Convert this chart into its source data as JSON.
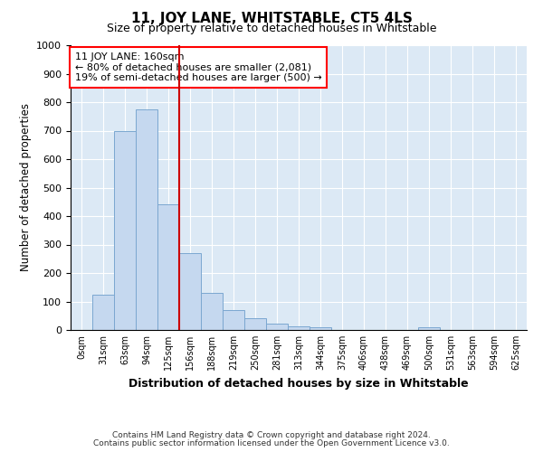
{
  "title": "11, JOY LANE, WHITSTABLE, CT5 4LS",
  "subtitle": "Size of property relative to detached houses in Whitstable",
  "xlabel": "Distribution of detached houses by size in Whitstable",
  "ylabel": "Number of detached properties",
  "footer1": "Contains HM Land Registry data © Crown copyright and database right 2024.",
  "footer2": "Contains public sector information licensed under the Open Government Licence v3.0.",
  "bin_labels": [
    "0sqm",
    "31sqm",
    "63sqm",
    "94sqm",
    "125sqm",
    "156sqm",
    "188sqm",
    "219sqm",
    "250sqm",
    "281sqm",
    "313sqm",
    "344sqm",
    "375sqm",
    "406sqm",
    "438sqm",
    "469sqm",
    "500sqm",
    "531sqm",
    "563sqm",
    "594sqm",
    "625sqm"
  ],
  "bar_values": [
    0,
    125,
    700,
    775,
    440,
    270,
    130,
    70,
    40,
    22,
    12,
    10,
    0,
    0,
    0,
    0,
    8,
    0,
    0,
    0,
    0
  ],
  "bar_color": "#c5d8ef",
  "bar_edge_color": "#7ba7d0",
  "ylim": [
    0,
    1000
  ],
  "yticks": [
    0,
    100,
    200,
    300,
    400,
    500,
    600,
    700,
    800,
    900,
    1000
  ],
  "vline_x_idx": 5,
  "vline_color": "#cc0000",
  "annotation_line1": "11 JOY LANE: 160sqm",
  "annotation_line2": "← 80% of detached houses are smaller (2,081)",
  "annotation_line3": "19% of semi-detached houses are larger (500) →",
  "background_color": "#dce9f5"
}
